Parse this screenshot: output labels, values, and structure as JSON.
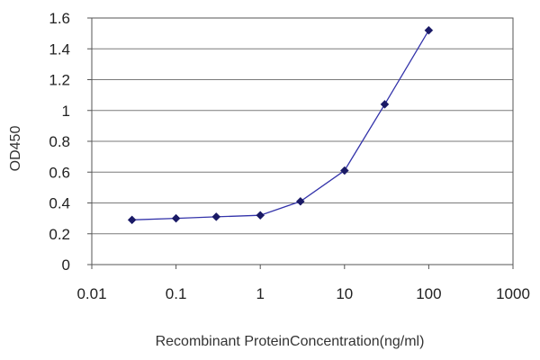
{
  "chart_data": {
    "type": "line",
    "xlabel": "Recombinant ProteinConcentration(ng/ml)",
    "ylabel": "OD450",
    "x_scale": "log",
    "xlim": [
      0.01,
      1000
    ],
    "ylim": [
      0,
      1.6
    ],
    "x_ticks": [
      "0.01",
      "0.1",
      "1",
      "10",
      "100",
      "1000"
    ],
    "y_ticks": [
      "0",
      "0.2",
      "0.4",
      "0.6",
      "0.8",
      "1",
      "1.2",
      "1.4",
      "1.6"
    ],
    "grid": "horizontal",
    "legend": "none",
    "series": [
      {
        "x": [
          0.03,
          0.1,
          0.3,
          1,
          3,
          10,
          30,
          100
        ],
        "y": [
          0.29,
          0.3,
          0.31,
          0.32,
          0.41,
          0.61,
          1.04,
          1.52
        ]
      }
    ],
    "colors": {
      "line": "#3333aa",
      "marker": "#1a1a66",
      "grid": "#7a7a7a",
      "axis": "#555555"
    }
  }
}
